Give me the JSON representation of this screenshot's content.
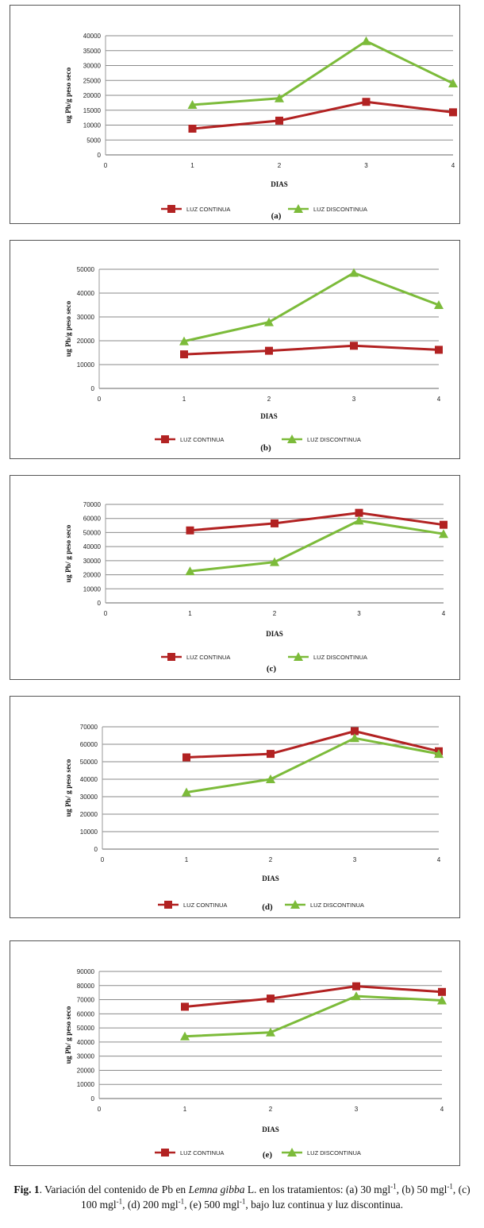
{
  "chart_data": [
    {
      "type": "line",
      "x": [
        1,
        2,
        3,
        4
      ],
      "xlim": [
        0,
        4
      ],
      "xticks": [
        "0",
        "1",
        "2",
        "3",
        "4"
      ],
      "ylim": [
        0,
        40000
      ],
      "yticks": [
        "0",
        "5000",
        "10000",
        "15000",
        "20000",
        "25000",
        "30000",
        "35000",
        "40000"
      ],
      "xlabel": "DIAS",
      "ylabel": "ug Pb/g peso seco",
      "panel_label": "(a)",
      "grid": "horizontal",
      "legend_position": "bottom",
      "series": [
        {
          "name": "LUZ CONTINUA",
          "values": [
            8800,
            11500,
            17800,
            14300
          ],
          "color": "#b22222",
          "marker": "square"
        },
        {
          "name": "LUZ DISCONTINUA",
          "values": [
            16800,
            19000,
            38200,
            24000
          ],
          "color": "#7cbb3a",
          "marker": "triangle"
        }
      ]
    },
    {
      "type": "line",
      "x": [
        1,
        2,
        3,
        4
      ],
      "xlim": [
        0,
        4
      ],
      "xticks": [
        "0",
        "1",
        "2",
        "3",
        "4"
      ],
      "ylim": [
        0,
        50000
      ],
      "yticks": [
        "0",
        "10000",
        "20000",
        "30000",
        "40000",
        "50000"
      ],
      "xlabel": "DIAS",
      "ylabel": "ug Pb/g peso seco",
      "panel_label": "(b)",
      "grid": "horizontal",
      "legend_position": "bottom",
      "series": [
        {
          "name": "LUZ CONTINUA",
          "values": [
            14300,
            15800,
            17900,
            16200
          ],
          "color": "#b22222",
          "marker": "square"
        },
        {
          "name": "LUZ DISCONTINUA",
          "values": [
            19800,
            27800,
            48500,
            35000
          ],
          "color": "#7cbb3a",
          "marker": "triangle"
        }
      ]
    },
    {
      "type": "line",
      "x": [
        1,
        2,
        3,
        4
      ],
      "xlim": [
        0,
        4
      ],
      "xticks": [
        "0",
        "1",
        "2",
        "3",
        "4"
      ],
      "ylim": [
        0,
        70000
      ],
      "yticks": [
        "0",
        "10000",
        "20000",
        "30000",
        "40000",
        "50000",
        "60000",
        "70000"
      ],
      "xlabel": "DIAS",
      "ylabel": "ug Pb/ g peso seco",
      "panel_label": "(c)",
      "grid": "horizontal",
      "legend_position": "bottom",
      "series": [
        {
          "name": "LUZ CONTINUA",
          "values": [
            51500,
            56500,
            64000,
            55500
          ],
          "color": "#b22222",
          "marker": "square"
        },
        {
          "name": "LUZ DISCONTINUA",
          "values": [
            22500,
            29000,
            58500,
            49000
          ],
          "color": "#7cbb3a",
          "marker": "triangle"
        }
      ]
    },
    {
      "type": "line",
      "x": [
        1,
        2,
        3,
        4
      ],
      "xlim": [
        0,
        4
      ],
      "xticks": [
        "0",
        "1",
        "2",
        "3",
        "4"
      ],
      "ylim": [
        0,
        70000
      ],
      "yticks": [
        "0",
        "10000",
        "20000",
        "30000",
        "40000",
        "50000",
        "60000",
        "70000"
      ],
      "xlabel": "DIAS",
      "ylabel": "ug Pb/ g peso seco",
      "panel_label": "(d)",
      "grid": "horizontal",
      "legend_position": "bottom",
      "series": [
        {
          "name": "LUZ CONTINUA",
          "values": [
            52500,
            54500,
            67500,
            56000
          ],
          "color": "#b22222",
          "marker": "square"
        },
        {
          "name": "LUZ DISCONTINUA",
          "values": [
            32500,
            40000,
            63500,
            54500
          ],
          "color": "#7cbb3a",
          "marker": "triangle"
        }
      ]
    },
    {
      "type": "line",
      "x": [
        1,
        2,
        3,
        4
      ],
      "xlim": [
        0,
        4
      ],
      "xticks": [
        "0",
        "1",
        "2",
        "3",
        "4"
      ],
      "ylim": [
        0,
        90000
      ],
      "yticks": [
        "0",
        "10000",
        "20000",
        "30000",
        "40000",
        "50000",
        "60000",
        "70000",
        "80000",
        "90000"
      ],
      "xlabel": "DIAS",
      "ylabel": "ug Pb/ g peso seco",
      "panel_label": "(e)",
      "grid": "horizontal",
      "legend_position": "bottom",
      "series": [
        {
          "name": "LUZ CONTINUA",
          "values": [
            65000,
            70800,
            79500,
            75500
          ],
          "color": "#b22222",
          "marker": "square"
        },
        {
          "name": "LUZ DISCONTINUA",
          "values": [
            44000,
            46800,
            72500,
            69500
          ],
          "color": "#7cbb3a",
          "marker": "triangle"
        }
      ]
    }
  ],
  "caption": {
    "fig_label": "Fig. 1",
    "text_1": ". Variación del contenido de Pb en ",
    "species": "Lemna gibba",
    "text_2": " L. en los tratamientos: (a) 30 mgl",
    "text_3": ", (b) 50 mgl",
    "text_4": ", (c) 100 mgl",
    "text_5": ", (d) 200 mgl",
    "text_6": ", (e) 500 mgl",
    "text_7": ", bajo luz continua y luz discontinua.",
    "sup": "-1"
  }
}
